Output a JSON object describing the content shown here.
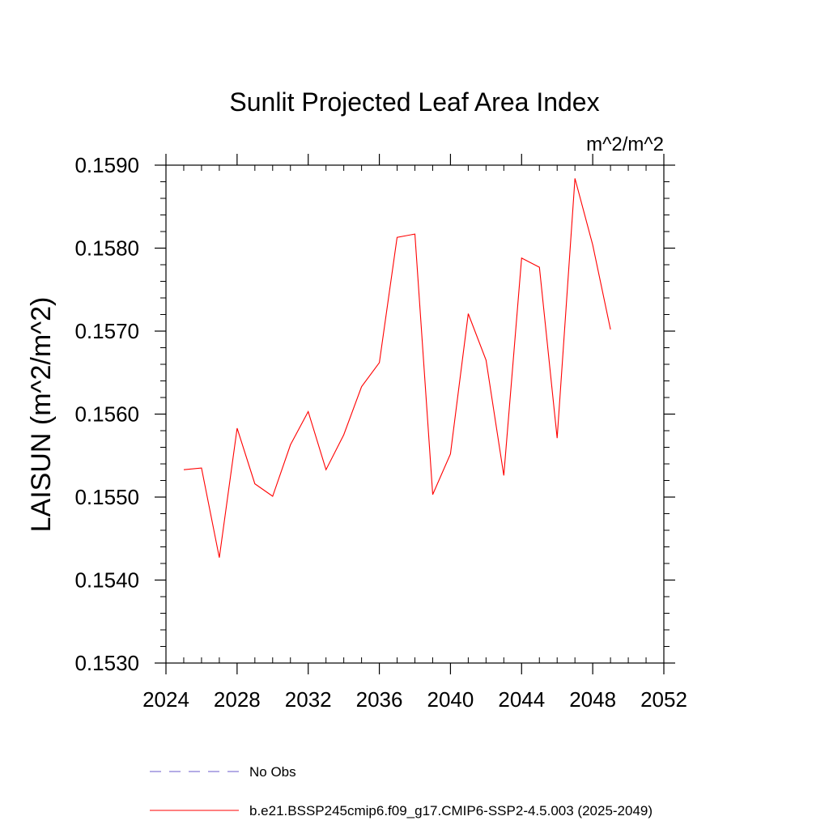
{
  "chart_data": {
    "type": "line",
    "title": "Sunlit Projected Leaf Area Index",
    "units_label": "m^2/m^2",
    "xlabel": "",
    "ylabel": "LAISUN  (m^2/m^2)",
    "xlim": [
      2024,
      2052
    ],
    "ylim": [
      0.153,
      0.159
    ],
    "x_ticks": [
      2024,
      2028,
      2032,
      2036,
      2040,
      2044,
      2048,
      2052
    ],
    "x_tick_labels": [
      "2024",
      "2028",
      "2032",
      "2036",
      "2040",
      "2044",
      "2048",
      "2052"
    ],
    "y_ticks": [
      0.153,
      0.154,
      0.155,
      0.156,
      0.157,
      0.158,
      0.159
    ],
    "y_tick_labels": [
      "0.1530",
      "0.1540",
      "0.1550",
      "0.1560",
      "0.1570",
      "0.1580",
      "0.1590"
    ],
    "grid": false,
    "legend_position": "bottom",
    "series": [
      {
        "name": "No Obs",
        "color": "#6a5acd",
        "style": "dashed",
        "x": [],
        "y": []
      },
      {
        "name": "b.e21.BSSP245cmip6.f09_g17.CMIP6-SSP2-4.5.003 (2025-2049)",
        "color": "#ff0000",
        "style": "solid",
        "x": [
          2025,
          2026,
          2027,
          2028,
          2029,
          2030,
          2031,
          2032,
          2033,
          2034,
          2035,
          2036,
          2037,
          2038,
          2039,
          2040,
          2041,
          2042,
          2043,
          2044,
          2045,
          2046,
          2047,
          2048,
          2049
        ],
        "y": [
          0.15533,
          0.15535,
          0.15427,
          0.15583,
          0.15516,
          0.15501,
          0.15563,
          0.15603,
          0.15533,
          0.15575,
          0.15633,
          0.15662,
          0.15813,
          0.15817,
          0.15503,
          0.15552,
          0.15721,
          0.15665,
          0.15526,
          0.15788,
          0.15777,
          0.15571,
          0.15884,
          0.15804,
          0.15702
        ]
      }
    ]
  }
}
